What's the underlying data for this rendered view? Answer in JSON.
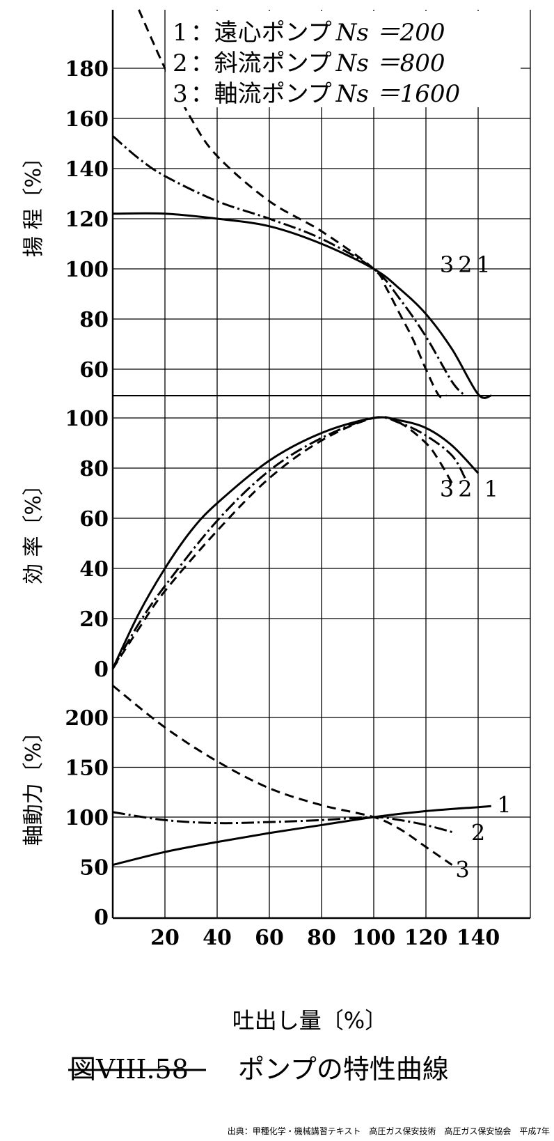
{
  "figure_number": "図VIII.58",
  "figure_caption": "ポンプの特性曲線",
  "source": "出典：甲種化学・機械講習テキスト　高圧ガス保安技術　高圧ガス保安協会　平成7年",
  "chart_data": {
    "type": "line",
    "xlabel": "吐出し量〔%〕",
    "x_ticks": [
      "20",
      "40",
      "60",
      "80",
      "100",
      "120",
      "140"
    ],
    "xlim": [
      0,
      160
    ],
    "legend": [
      {
        "num": "1",
        "text": "：遠心ポンプ",
        "ns": "Ns ＝200"
      },
      {
        "num": "2",
        "text": "：斜流ポンプ",
        "ns": "Ns ＝800"
      },
      {
        "num": "3",
        "text": "：軸流ポンプ",
        "ns": "Ns ＝1600"
      }
    ],
    "panels": [
      {
        "id": "head",
        "ylabel": "揚 程〔%〕",
        "ylim": [
          55,
          205
        ],
        "y_ticks": [
          "60",
          "80",
          "100",
          "120",
          "140",
          "160",
          "180"
        ],
        "curve_labels": [
          {
            "text": "3",
            "x": 128,
            "y": 102
          },
          {
            "text": "2",
            "x": 135,
            "y": 102
          },
          {
            "text": "1",
            "x": 142,
            "y": 102
          }
        ],
        "series": [
          {
            "num": "1",
            "x": [
              0,
              20,
              40,
              60,
              80,
              100,
              110,
              120,
              130,
              140,
              145
            ],
            "y": [
              122,
              122,
              120,
              117,
              110,
              100,
              92,
              82,
              68,
              50,
              40
            ]
          },
          {
            "num": "2",
            "x": [
              0,
              10,
              20,
              40,
              60,
              80,
              100,
              110,
              120,
              130,
              135
            ],
            "y": [
              153,
              144,
              137,
              127,
              120,
              112,
              100,
              88,
              73,
              55,
              44
            ]
          },
          {
            "num": "3",
            "x": [
              10,
              20,
              30,
              40,
              60,
              80,
              100,
              105,
              110,
              115,
              120,
              125,
              128
            ],
            "y": [
              206,
              180,
              160,
              145,
              127,
              115,
              100,
              92,
              82,
              72,
              60,
              48,
              40
            ]
          }
        ]
      },
      {
        "id": "efficiency",
        "ylabel": "効 率〔%〕",
        "ylim": [
          0,
          100
        ],
        "y_ticks": [
          "0",
          "20",
          "40",
          "60",
          "80",
          "100"
        ],
        "curve_labels": [
          {
            "text": "3",
            "x": 128,
            "y": 72
          },
          {
            "text": "2",
            "x": 135,
            "y": 72
          },
          {
            "text": "1",
            "x": 145,
            "y": 72
          }
        ],
        "series": [
          {
            "num": "1",
            "x": [
              0,
              10,
              20,
              30,
              40,
              60,
              80,
              100,
              110,
              120,
              130,
              140
            ],
            "y": [
              0,
              22,
              40,
              55,
              66,
              83,
              94,
              100,
              99,
              96,
              89,
              78
            ]
          },
          {
            "num": "2",
            "x": [
              0,
              10,
              20,
              40,
              60,
              80,
              100,
              110,
              120,
              130,
              135
            ],
            "y": [
              0,
              18,
              33,
              59,
              79,
              92,
              100,
              98,
              93,
              85,
              76
            ]
          },
          {
            "num": "3",
            "x": [
              0,
              10,
              20,
              40,
              60,
              80,
              100,
              110,
              120,
              125,
              130
            ],
            "y": [
              0,
              16,
              31,
              55,
              76,
              91,
              100,
              98,
              90,
              83,
              74
            ]
          }
        ]
      },
      {
        "id": "power",
        "ylabel": "軸動力〔%〕",
        "ylim": [
          0,
          235
        ],
        "y_ticks": [
          "0",
          "50",
          "100",
          "150",
          "200"
        ],
        "curve_labels": [
          {
            "text": "1",
            "x": 150,
            "y": 113
          },
          {
            "text": "2",
            "x": 140,
            "y": 85
          },
          {
            "text": "3",
            "x": 134,
            "y": 48
          }
        ],
        "series": [
          {
            "num": "1",
            "x": [
              0,
              20,
              40,
              60,
              80,
              100,
              120,
              140,
              145
            ],
            "y": [
              52,
              65,
              75,
              84,
              92,
              100,
              106,
              110,
              111
            ]
          },
          {
            "num": "2",
            "x": [
              0,
              20,
              40,
              60,
              80,
              100,
              110,
              120,
              130
            ],
            "y": [
              105,
              97,
              94,
              95,
              97,
              100,
              97,
              92,
              85
            ]
          },
          {
            "num": "3",
            "x": [
              0,
              20,
              40,
              60,
              80,
              100,
              110,
              120,
              130
            ],
            "y": [
              232,
              190,
              156,
              129,
              112,
              100,
              88,
              70,
              52
            ]
          }
        ]
      }
    ]
  }
}
